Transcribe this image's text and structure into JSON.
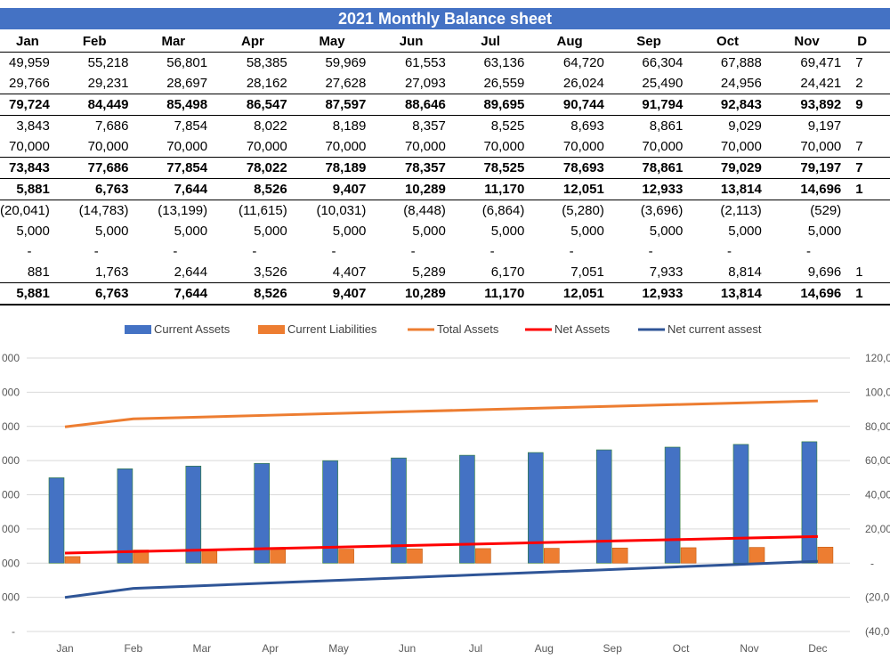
{
  "sheet": {
    "title": "2021 Monthly Balance sheet",
    "headers": [
      "Jan",
      "Feb",
      "Mar",
      "Apr",
      "May",
      "Jun",
      "Jul",
      "Aug",
      "Sep",
      "Oct",
      "Nov",
      "D"
    ],
    "rows": [
      {
        "bold": false,
        "cells": [
          "49,959",
          "55,218",
          "56,801",
          "58,385",
          "59,969",
          "61,553",
          "63,136",
          "64,720",
          "66,304",
          "67,888",
          "69,471",
          "7"
        ]
      },
      {
        "bold": false,
        "cells": [
          "29,766",
          "29,231",
          "28,697",
          "28,162",
          "27,628",
          "27,093",
          "26,559",
          "26,024",
          "25,490",
          "24,956",
          "24,421",
          "2"
        ]
      },
      {
        "bold": true,
        "cells": [
          "79,724",
          "84,449",
          "85,498",
          "86,547",
          "87,597",
          "88,646",
          "89,695",
          "90,744",
          "91,794",
          "92,843",
          "93,892",
          "9"
        ]
      },
      {
        "bold": false,
        "cells": [
          "3,843",
          "7,686",
          "7,854",
          "8,022",
          "8,189",
          "8,357",
          "8,525",
          "8,693",
          "8,861",
          "9,029",
          "9,197",
          ""
        ]
      },
      {
        "bold": false,
        "cells": [
          "70,000",
          "70,000",
          "70,000",
          "70,000",
          "70,000",
          "70,000",
          "70,000",
          "70,000",
          "70,000",
          "70,000",
          "70,000",
          "7"
        ]
      },
      {
        "bold": true,
        "cells": [
          "73,843",
          "77,686",
          "77,854",
          "78,022",
          "78,189",
          "78,357",
          "78,525",
          "78,693",
          "78,861",
          "79,029",
          "79,197",
          "7"
        ]
      },
      {
        "bold": true,
        "cells": [
          "5,881",
          "6,763",
          "7,644",
          "8,526",
          "9,407",
          "10,289",
          "11,170",
          "12,051",
          "12,933",
          "13,814",
          "14,696",
          "1"
        ]
      },
      {
        "bold": false,
        "cells": [
          "(20,041)",
          "(14,783)",
          "(13,199)",
          "(11,615)",
          "(10,031)",
          "(8,448)",
          "(6,864)",
          "(5,280)",
          "(3,696)",
          "(2,113)",
          "(529)",
          ""
        ]
      },
      {
        "bold": false,
        "cells": [
          "5,000",
          "5,000",
          "5,000",
          "5,000",
          "5,000",
          "5,000",
          "5,000",
          "5,000",
          "5,000",
          "5,000",
          "5,000",
          ""
        ]
      },
      {
        "bold": false,
        "cells": [
          "-",
          "-",
          "-",
          "-",
          "-",
          "-",
          "-",
          "-",
          "-",
          "-",
          "-",
          ""
        ]
      },
      {
        "bold": false,
        "cells": [
          "881",
          "1,763",
          "2,644",
          "3,526",
          "4,407",
          "5,289",
          "6,170",
          "7,051",
          "7,933",
          "8,814",
          "9,696",
          "1"
        ]
      },
      {
        "bold": true,
        "cells": [
          "5,881",
          "6,763",
          "7,644",
          "8,526",
          "9,407",
          "10,289",
          "11,170",
          "12,051",
          "12,933",
          "13,814",
          "14,696",
          "1"
        ]
      }
    ]
  },
  "chart_data": {
    "type": "bar",
    "title": "",
    "categories": [
      "Jan",
      "Feb",
      "Mar",
      "Apr",
      "May",
      "Jun",
      "Jul",
      "Aug",
      "Sep",
      "Oct",
      "Nov",
      "Dec"
    ],
    "left_axis_ticks": [
      "000",
      "000",
      "000",
      "000",
      "000",
      "000",
      "000",
      "000",
      "-"
    ],
    "right_axis_ticks": [
      "120,0",
      "100,0",
      "80,00",
      "60,00",
      "40,00",
      "20,00",
      "-",
      "(20,00",
      "(40,00"
    ],
    "ylim_right": [
      -40000,
      120000
    ],
    "legend_position": "top",
    "grid": true,
    "series": [
      {
        "name": "Current Assets",
        "kind": "bar",
        "color": "#4472c4",
        "values": [
          49959,
          55218,
          56801,
          58385,
          59969,
          61553,
          63136,
          64720,
          66304,
          67888,
          69471,
          71055
        ]
      },
      {
        "name": "Current Liabilities",
        "kind": "bar",
        "color": "#ed7d31",
        "values": [
          3843,
          7686,
          7854,
          8022,
          8189,
          8357,
          8525,
          8693,
          8861,
          9029,
          9197,
          9365
        ]
      },
      {
        "name": "Total Assets",
        "kind": "line",
        "color": "#ed7d31",
        "values": [
          79724,
          84449,
          85498,
          86547,
          87597,
          88646,
          89695,
          90744,
          91794,
          92843,
          93892,
          94941
        ]
      },
      {
        "name": "Net Assets",
        "kind": "line",
        "color": "#ff0000",
        "values": [
          5881,
          6763,
          7644,
          8526,
          9407,
          10289,
          11170,
          12051,
          12933,
          13814,
          14696,
          15577
        ]
      },
      {
        "name": "Net current assest",
        "kind": "line",
        "color": "#2f5597",
        "values": [
          -20041,
          -14783,
          -13199,
          -11615,
          -10031,
          -8448,
          -6864,
          -5280,
          -3696,
          -2113,
          -529,
          1055
        ]
      }
    ]
  }
}
